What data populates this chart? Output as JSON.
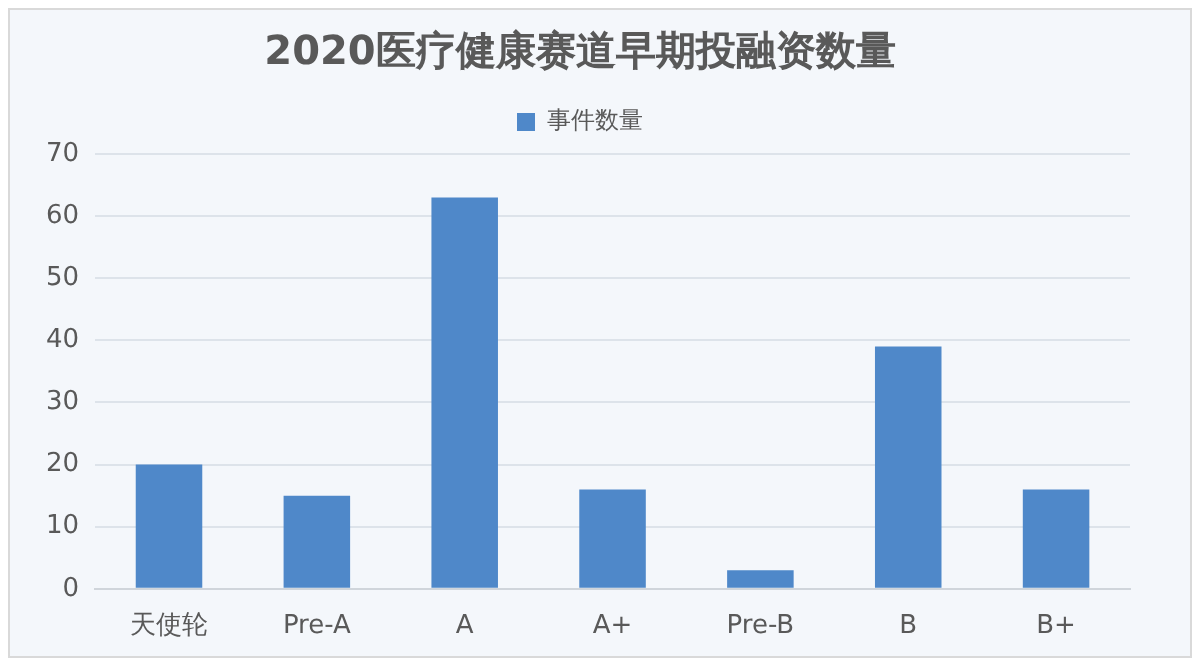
{
  "chart_data": {
    "type": "bar",
    "title": "2020医疗健康赛道早期投融资数量",
    "categories": [
      "天使轮",
      "Pre-A",
      "A",
      "A+",
      "Pre-B",
      "B",
      "B+"
    ],
    "series": [
      {
        "name": "事件数量",
        "color": "#4f88c9",
        "values": [
          20,
          15,
          63,
          16,
          3,
          39,
          16
        ]
      }
    ],
    "ylim": [
      0,
      70
    ],
    "yticks": [
      0,
      10,
      20,
      30,
      40,
      50,
      60,
      70
    ],
    "grid": "y",
    "legend": "top"
  }
}
